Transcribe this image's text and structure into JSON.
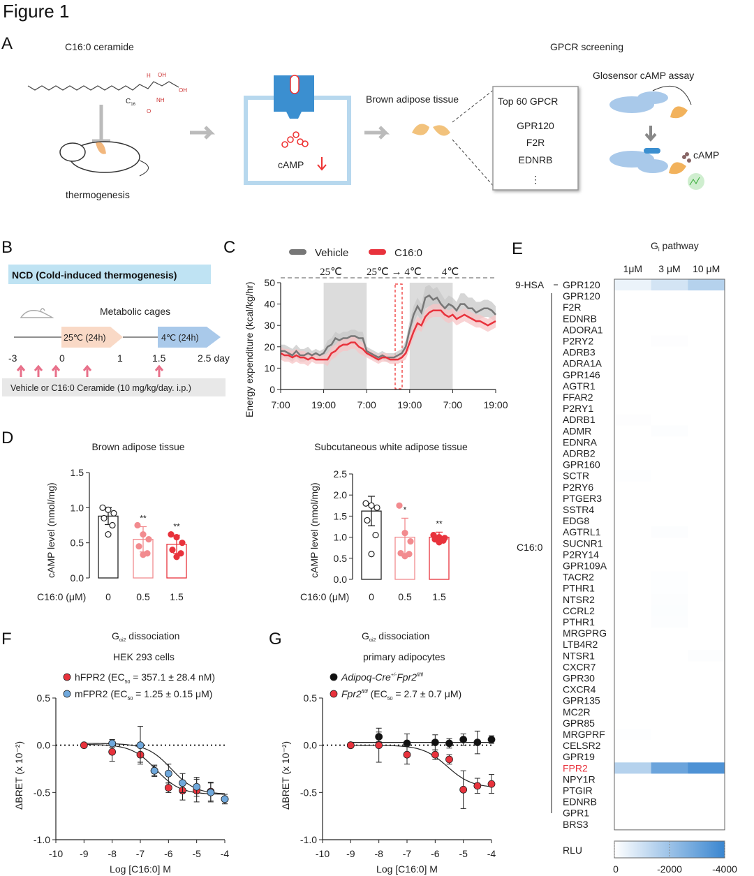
{
  "figure_title": "Figure 1",
  "panel_A": {
    "label": "A",
    "ceramide": "C16:0 ceramide",
    "thermogenesis": "thermogenesis",
    "c16": "C",
    "c16_sub": "16",
    "camp": "cAMP",
    "bat": "Brown adipose tissue",
    "gpcr_screening": "GPCR screening",
    "top60": "Top 60 GPCR",
    "gpcr_list": [
      "GPR120",
      "F2R",
      "EDNRB",
      "⋮"
    ],
    "glosensor": "Glosensor cAMP assay",
    "camp2": "cAMP",
    "oh1": "OH",
    "oh2": "OH",
    "h1": "H",
    "nh": "NH",
    "h2": "H",
    "o": "O",
    "oh3": "OH"
  },
  "panel_B": {
    "label": "B",
    "banner": "NCD (Cold-induced thermogenesis)",
    "metabolic": "Metabolic cages",
    "phase1": "25℃ (24h)",
    "phase2": "4℃ (24h)",
    "ticks": [
      "-3",
      "0",
      "1",
      "1.5",
      "2.5 day"
    ],
    "treatment": "Vehicle or C16:0 Ceramide (10 mg/kg/day. i.p.)",
    "colors": {
      "banner": "#bfe3f3",
      "phase1": "#f9d9c6",
      "phase2": "#a9c9ea",
      "arrow": "#e8708a"
    }
  },
  "panel_C": {
    "label": "C",
    "chart_data": {
      "type": "line",
      "ylabel": "Energy expenditure  (kcal/kg/hr)",
      "ylim": [
        0,
        50
      ],
      "y_ticks": [
        "0",
        "10",
        "20",
        "30",
        "40",
        "50"
      ],
      "x_ticks": [
        "7:00",
        "19:00",
        "7:00",
        "19:00",
        "7:00",
        "19:00"
      ],
      "temps": [
        "25℃",
        "25℃ → 4℃",
        "4℃"
      ],
      "dark_periods": [
        [
          1,
          2
        ],
        [
          3,
          4
        ]
      ],
      "series": [
        {
          "name": "Vehicle",
          "color": "#777777",
          "band": "#c8c8c8",
          "values": [
            18,
            18,
            17,
            16,
            18,
            16,
            16,
            17,
            16,
            17,
            16,
            17,
            20,
            21,
            24,
            23,
            24,
            24,
            25,
            25,
            24,
            24,
            18,
            17,
            16,
            15,
            16,
            15,
            15,
            15,
            16,
            17,
            20,
            28,
            35,
            39,
            36,
            43,
            44,
            42,
            43,
            40,
            38,
            40,
            39,
            37,
            40,
            40,
            38,
            38,
            36,
            37,
            38,
            38,
            37,
            35
          ],
          "err": [
            3,
            3,
            3,
            3,
            3,
            3,
            3,
            3,
            2,
            2,
            2,
            2,
            3,
            3,
            3,
            3,
            3,
            3,
            3,
            3,
            3,
            3,
            2,
            2,
            2,
            2,
            2,
            2,
            2,
            2,
            2,
            2,
            3,
            4,
            4,
            4,
            4,
            5,
            5,
            5,
            5,
            5,
            4,
            4,
            4,
            4,
            5,
            5,
            5,
            5,
            5,
            4,
            4,
            4,
            4,
            4
          ]
        },
        {
          "name": "C16:0",
          "color": "#e8323c",
          "band": "#f7c4c6",
          "values": [
            17,
            16,
            16,
            15,
            16,
            15,
            15,
            14,
            15,
            14,
            14,
            14,
            14,
            17,
            18,
            20,
            21,
            21,
            22,
            22,
            20,
            19,
            17,
            16,
            15,
            14,
            15,
            15,
            14,
            14,
            14,
            15,
            17,
            22,
            27,
            31,
            30,
            34,
            36,
            37,
            37,
            37,
            35,
            34,
            35,
            33,
            34,
            35,
            34,
            33,
            32,
            32,
            31,
            30,
            31,
            32
          ],
          "err": [
            3,
            3,
            3,
            3,
            3,
            3,
            3,
            3,
            2,
            2,
            2,
            2,
            3,
            3,
            3,
            3,
            3,
            3,
            3,
            3,
            3,
            3,
            2,
            2,
            2,
            2,
            2,
            2,
            2,
            2,
            2,
            2,
            3,
            3,
            3,
            3,
            3,
            3,
            3,
            3,
            3,
            3,
            3,
            3,
            3,
            3,
            3,
            3,
            3,
            3,
            3,
            3,
            3,
            3,
            3,
            3
          ]
        }
      ]
    }
  },
  "panel_D": {
    "label": "D",
    "xlabel": "C16:0 (μM)",
    "chart_data": [
      {
        "type": "bar",
        "title": "Brown adipose tissue",
        "ylabel": "cAMP level (nmol/mg)",
        "ylim": [
          0,
          1.5
        ],
        "y_ticks": [
          "0.0",
          "0.5",
          "1.0",
          "1.5"
        ],
        "categories": [
          "0",
          "0.5",
          "1.5"
        ],
        "means": [
          0.88,
          0.55,
          0.48
        ],
        "sd": [
          0.12,
          0.18,
          0.13
        ],
        "points": [
          [
            1.0,
            0.97,
            0.92,
            0.85,
            0.75,
            0.62
          ],
          [
            0.75,
            0.62,
            0.55,
            0.45,
            0.35,
            0.33
          ],
          [
            0.62,
            0.58,
            0.5,
            0.4,
            0.35,
            0.3
          ]
        ],
        "sig": [
          "",
          "**",
          "**"
        ],
        "colors": [
          "#222222",
          "#f28b8f",
          "#e8323c"
        ]
      },
      {
        "type": "bar",
        "title": "Subcutaneous white adipose tissue",
        "ylabel": "cAMP level (nmol/mg)",
        "ylim": [
          0,
          2.5
        ],
        "y_ticks": [
          "0.0",
          "0.5",
          "1.0",
          "1.5",
          "2.0",
          "2.5"
        ],
        "categories": [
          "0",
          "0.5",
          "1.5"
        ],
        "means": [
          1.62,
          1.0,
          1.0
        ],
        "sd": [
          0.35,
          0.45,
          0.12
        ],
        "points": [
          [
            1.8,
            1.75,
            1.7,
            1.4,
            1.05,
            0.6
          ],
          [
            1.75,
            1.1,
            0.9,
            0.62,
            0.6,
            0.55
          ],
          [
            1.05,
            1.0,
            0.98,
            0.95,
            0.92,
            0.88
          ]
        ],
        "sig": [
          "",
          "*",
          "**"
        ],
        "colors": [
          "#222222",
          "#f28b8f",
          "#e8323c"
        ]
      }
    ]
  },
  "panel_E": {
    "label": "E",
    "title": "G",
    "title_sub": "i",
    "title_rest": " pathway",
    "columns": [
      "1μM",
      "3 μM",
      "10 μM"
    ],
    "group1": "9-HSA",
    "group2": "C16:0",
    "colorbar_label": "RLU",
    "colorbar_ticks": [
      "0",
      "-2000",
      "-4000"
    ],
    "highlight": "FPR2",
    "highlight_color": "#e8323c",
    "chart_data": {
      "type": "heatmap",
      "zlim": [
        0,
        -4000
      ],
      "rows": [
        {
          "name": "GPR120",
          "group": "9-HSA",
          "values": [
            -400,
            -900,
            -1500
          ]
        },
        {
          "name": "GPR120",
          "values": [
            0,
            0,
            0
          ]
        },
        {
          "name": "F2R",
          "values": [
            0,
            0,
            0
          ]
        },
        {
          "name": "EDNRB",
          "values": [
            0,
            0,
            0
          ]
        },
        {
          "name": "ADORA1",
          "values": [
            0,
            0,
            0
          ]
        },
        {
          "name": "P2RY2",
          "values": [
            0,
            -50,
            0
          ]
        },
        {
          "name": "ADRB3",
          "values": [
            0,
            0,
            0
          ]
        },
        {
          "name": "ADRA1A",
          "values": [
            0,
            0,
            0
          ]
        },
        {
          "name": "GPR146",
          "values": [
            0,
            0,
            0
          ]
        },
        {
          "name": "AGTR1",
          "values": [
            0,
            0,
            0
          ]
        },
        {
          "name": "FFAR2",
          "values": [
            0,
            0,
            0
          ]
        },
        {
          "name": "P2RY1",
          "values": [
            0,
            0,
            0
          ]
        },
        {
          "name": "ADRB1",
          "values": [
            -50,
            0,
            0
          ]
        },
        {
          "name": "ADMR",
          "values": [
            0,
            -60,
            0
          ]
        },
        {
          "name": "EDNRA",
          "values": [
            0,
            0,
            0
          ]
        },
        {
          "name": "ADRB2",
          "values": [
            0,
            0,
            0
          ]
        },
        {
          "name": "GPR160",
          "values": [
            0,
            0,
            0
          ]
        },
        {
          "name": "SCTR",
          "values": [
            -40,
            0,
            0
          ]
        },
        {
          "name": "P2RY6",
          "values": [
            0,
            0,
            0
          ]
        },
        {
          "name": "PTGER3",
          "values": [
            0,
            0,
            0
          ]
        },
        {
          "name": "SSTR4",
          "values": [
            0,
            0,
            0
          ]
        },
        {
          "name": "EDG8",
          "values": [
            0,
            0,
            0
          ]
        },
        {
          "name": "AGTRL1",
          "values": [
            0,
            -60,
            0
          ]
        },
        {
          "name": "SUCNR1",
          "values": [
            0,
            0,
            0
          ]
        },
        {
          "name": "P2RY14",
          "values": [
            0,
            0,
            0
          ]
        },
        {
          "name": "GPR109A",
          "values": [
            0,
            0,
            0
          ]
        },
        {
          "name": "TACR2",
          "values": [
            0,
            -40,
            0
          ]
        },
        {
          "name": "PTHR1",
          "values": [
            0,
            -40,
            0
          ]
        },
        {
          "name": "NTSR2",
          "values": [
            0,
            -60,
            0
          ]
        },
        {
          "name": "CCRL2",
          "values": [
            0,
            -80,
            0
          ]
        },
        {
          "name": "PTHR1",
          "values": [
            0,
            -60,
            0
          ]
        },
        {
          "name": "MRGPRG",
          "values": [
            0,
            0,
            0
          ]
        },
        {
          "name": "LTB4R2",
          "values": [
            0,
            0,
            0
          ]
        },
        {
          "name": "NTSR1",
          "values": [
            0,
            0,
            -60
          ]
        },
        {
          "name": "CXCR7",
          "values": [
            0,
            0,
            0
          ]
        },
        {
          "name": "GPR30",
          "values": [
            0,
            0,
            0
          ]
        },
        {
          "name": "CXCR4",
          "values": [
            0,
            0,
            0
          ]
        },
        {
          "name": "GPR135",
          "values": [
            0,
            0,
            0
          ]
        },
        {
          "name": "MC2R",
          "values": [
            0,
            0,
            0
          ]
        },
        {
          "name": "GPR85",
          "values": [
            0,
            0,
            0
          ]
        },
        {
          "name": "MRGPRF",
          "values": [
            -40,
            0,
            0
          ]
        },
        {
          "name": "CELSR2",
          "values": [
            0,
            0,
            0
          ]
        },
        {
          "name": "GPR19",
          "values": [
            0,
            0,
            0
          ]
        },
        {
          "name": "FPR2",
          "values": [
            -1500,
            -3000,
            -3600
          ]
        },
        {
          "name": "NPY1R",
          "values": [
            0,
            0,
            0
          ]
        },
        {
          "name": "PTGIR",
          "values": [
            0,
            0,
            0
          ]
        },
        {
          "name": "EDNRB",
          "values": [
            0,
            0,
            0
          ]
        },
        {
          "name": "GPR1",
          "values": [
            0,
            0,
            0
          ]
        },
        {
          "name": "BRS3",
          "values": [
            0,
            0,
            0
          ]
        }
      ]
    }
  },
  "panel_F": {
    "label": "F",
    "title": "G",
    "title_sub": "αi2",
    "title_rest": " dissociation",
    "subtitle": "HEK 293 cells",
    "chart_data": {
      "type": "scatter",
      "xlabel": "Log [C16:0] M",
      "ylabel": "ΔBRET (x 10⁻²)",
      "xlim": [
        -10,
        -4
      ],
      "ylim": [
        -1.0,
        0.5
      ],
      "x_ticks": [
        "-10",
        "-9",
        "-8",
        "-7",
        "-6",
        "-5",
        "-4"
      ],
      "y_ticks": [
        "-1.0",
        "-0.5",
        "0.0",
        "0.5"
      ],
      "series": [
        {
          "name": "hFPR2 (EC50 = 357.1 ± 28.4 nM)",
          "legend": [
            "hFPR2 (EC",
            "50",
            " = 357.1 ± 28.4 nM)"
          ],
          "color": "#e8323c",
          "x": [
            -9,
            -8,
            -7,
            -6.5,
            -6,
            -5.5,
            -5,
            -4.5,
            -4
          ],
          "y": [
            0,
            -0.07,
            -0.1,
            -0.27,
            -0.45,
            -0.48,
            -0.48,
            -0.49,
            -0.57
          ],
          "err": [
            0.01,
            0.1,
            0.08,
            0.06,
            0.05,
            0.1,
            0.12,
            0.1,
            0.05
          ],
          "fit": {
            "top": 0.01,
            "bottom": -0.52,
            "logec50": -6.45
          }
        },
        {
          "name": "mFPR2 (EC50 = 1.25 ± 0.15 μM)",
          "legend": [
            "mFPR2 (EC",
            "50",
            " = 1.25 ± 0.15 μM)"
          ],
          "color": "#6fa8dc",
          "x": [
            -8,
            -7,
            -6.5,
            -6,
            -5.5,
            -5,
            -4.5,
            -4
          ],
          "y": [
            0.02,
            0,
            -0.27,
            -0.3,
            -0.4,
            -0.44,
            -0.5,
            -0.57
          ],
          "err": [
            0.04,
            0.2,
            0.05,
            0.1,
            0.1,
            0.1,
            0.1,
            0.05
          ],
          "fit": {
            "top": 0.02,
            "bottom": -0.52,
            "logec50": -5.9
          }
        }
      ]
    }
  },
  "panel_G": {
    "label": "G",
    "title": "G",
    "title_sub": "αi2",
    "title_rest": " dissociation",
    "subtitle": "primary adipocytes",
    "chart_data": {
      "type": "scatter",
      "xlabel": "Log [C16:0] M",
      "ylabel": "ΔBRET (x 10⁻²)",
      "xlim": [
        -10,
        -4
      ],
      "ylim": [
        -1.0,
        0.5
      ],
      "x_ticks": [
        "-10",
        "-9",
        "-8",
        "-7",
        "-6",
        "-5",
        "-4"
      ],
      "y_ticks": [
        "-1.0",
        "-0.5",
        "0.0",
        "0.5"
      ],
      "series": [
        {
          "name": "Adipoq-Cre+/-Fpr2fl/fl",
          "legend": [
            "Adipoq-Cre",
            "+/-",
            "Fpr2",
            "fl/fl",
            ""
          ],
          "color": "#111111",
          "x": [
            -9,
            -8,
            -7,
            -6,
            -5.5,
            -5,
            -4.5,
            -4
          ],
          "y": [
            0,
            0.09,
            0.02,
            0.03,
            0.02,
            0.06,
            0.03,
            0.06
          ],
          "err": [
            0.01,
            0.05,
            0.1,
            0.08,
            0.05,
            0.06,
            0.12,
            0.04
          ],
          "fit": {
            "top": 0.03,
            "bottom": 0.03,
            "logec50": -6
          }
        },
        {
          "name": "Fpr2fl/fl (EC50 = 2.7 ± 0.7 μM)",
          "legend": [
            "Fpr2",
            "fl/fl",
            " (EC",
            "50",
            " = 2.7 ± 0.7 μM)"
          ],
          "color": "#e8323c",
          "x": [
            -9,
            -8,
            -7,
            -6,
            -5.5,
            -5,
            -4.5,
            -4
          ],
          "y": [
            0,
            0,
            -0.1,
            -0.1,
            -0.15,
            -0.47,
            -0.43,
            -0.41
          ],
          "err": [
            0.01,
            0.18,
            0.1,
            0.05,
            0.05,
            0.2,
            0.08,
            0.1
          ],
          "fit": {
            "top": 0,
            "bottom": -0.45,
            "logec50": -5.57
          }
        }
      ]
    }
  }
}
